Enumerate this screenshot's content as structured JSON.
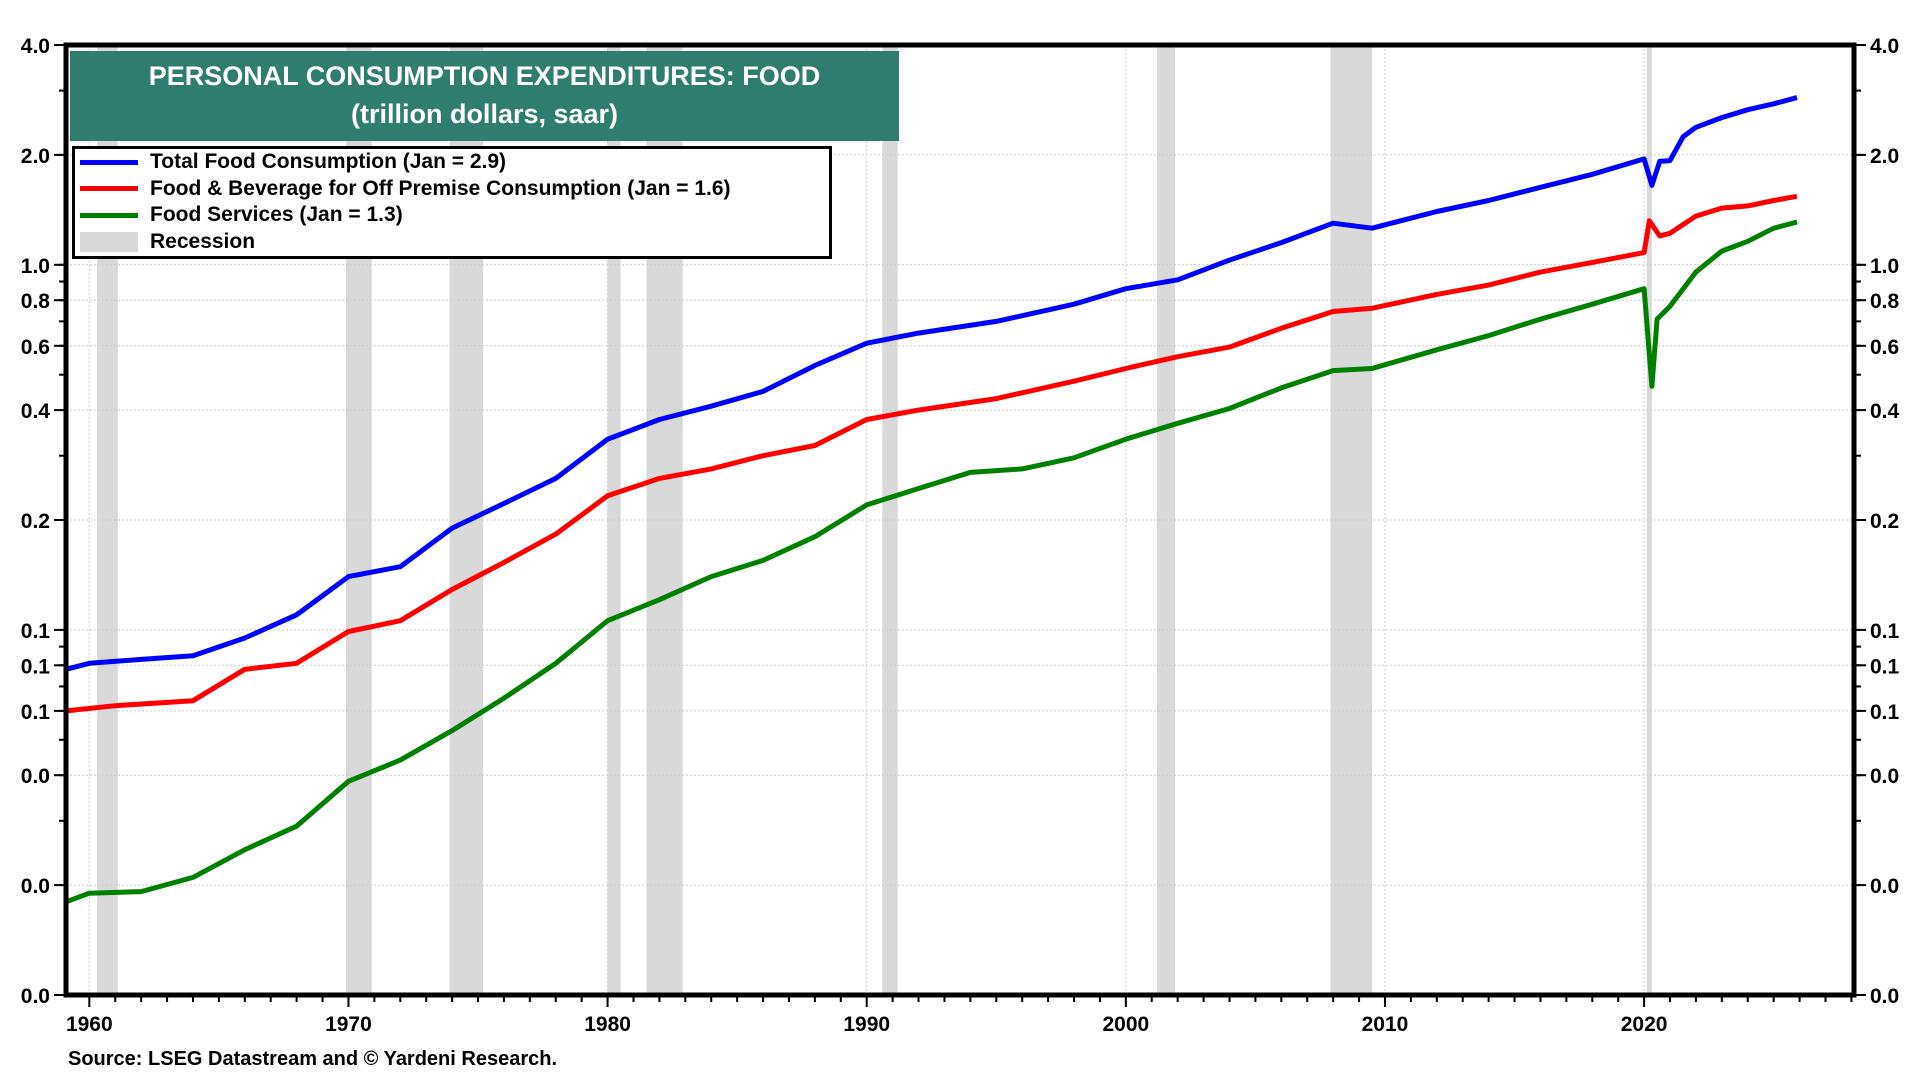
{
  "chart_data": {
    "type": "line",
    "title": "PERSONAL CONSUMPTION EXPENDITURES: FOOD",
    "subtitle": "(trillion dollars, saar)",
    "xlabel": "",
    "ylabel": "",
    "y_scale": "log",
    "ylim": [
      0.01,
      4.0
    ],
    "xlim": [
      1959.1,
      2028.1
    ],
    "grid": true,
    "legend_position": "top-left",
    "x_ticks": [
      1960,
      1970,
      1980,
      1990,
      2000,
      2010,
      2020
    ],
    "x_tick_labels": [
      "1960",
      "1970",
      "1980",
      "1990",
      "2000",
      "2010",
      "2020"
    ],
    "y_ticks": [
      {
        "value": 4.0,
        "label": "4.0"
      },
      {
        "value": 2.0,
        "label": "2.0"
      },
      {
        "value": 1.0,
        "label": "1.0"
      },
      {
        "value": 0.8,
        "label": "0.8"
      },
      {
        "value": 0.6,
        "label": "0.6"
      },
      {
        "value": 0.4,
        "label": "0.4"
      },
      {
        "value": 0.2,
        "label": "0.2"
      },
      {
        "value": 0.1,
        "label": "0.1"
      },
      {
        "value": 0.08,
        "label": "0.1"
      },
      {
        "value": 0.06,
        "label": "0.1"
      },
      {
        "value": 0.04,
        "label": "0.0"
      },
      {
        "value": 0.02,
        "label": "0.0"
      },
      {
        "value": 0.01,
        "label": "0.0"
      }
    ],
    "series": [
      {
        "name": "Total Food Consumption  (Jan = 2.9)",
        "color": "#0000ff",
        "x": [
          1959.1,
          1960,
          1962,
          1964,
          1966,
          1968,
          1970,
          1972,
          1974,
          1976,
          1978,
          1980,
          1982,
          1984,
          1986,
          1988,
          1990,
          1992,
          1995,
          1998,
          2000,
          2002,
          2004,
          2006,
          2008,
          2009.5,
          2012,
          2014,
          2016,
          2018,
          2020.0,
          2020.3,
          2020.6,
          2021,
          2021.5,
          2022,
          2023,
          2024,
          2025,
          2025.9
        ],
        "values": [
          0.078,
          0.081,
          0.083,
          0.085,
          0.095,
          0.11,
          0.14,
          0.149,
          0.19,
          0.222,
          0.26,
          0.333,
          0.377,
          0.41,
          0.45,
          0.53,
          0.61,
          0.65,
          0.7,
          0.78,
          0.86,
          0.91,
          1.03,
          1.15,
          1.3,
          1.26,
          1.4,
          1.5,
          1.63,
          1.77,
          1.95,
          1.65,
          1.92,
          1.93,
          2.24,
          2.38,
          2.53,
          2.66,
          2.76,
          2.87
        ]
      },
      {
        "name": "Food & Beverage for Off Premise Consumption  (Jan = 1.6)",
        "color": "#ff0000",
        "x": [
          1959.1,
          1961,
          1964,
          1966,
          1968,
          1970,
          1972,
          1974,
          1976,
          1978,
          1980,
          1982,
          1984,
          1986,
          1988,
          1990,
          1992,
          1995,
          1998,
          2000,
          2002,
          2004,
          2006,
          2008,
          2009.5,
          2012,
          2014,
          2016,
          2018,
          2020.0,
          2020.2,
          2020.6,
          2021,
          2022,
          2023,
          2024,
          2025,
          2025.9
        ],
        "values": [
          0.06,
          0.062,
          0.064,
          0.078,
          0.081,
          0.099,
          0.106,
          0.129,
          0.153,
          0.183,
          0.233,
          0.26,
          0.276,
          0.3,
          0.32,
          0.377,
          0.4,
          0.43,
          0.48,
          0.52,
          0.56,
          0.595,
          0.67,
          0.745,
          0.76,
          0.83,
          0.88,
          0.955,
          1.015,
          1.08,
          1.32,
          1.2,
          1.22,
          1.36,
          1.43,
          1.45,
          1.5,
          1.54
        ]
      },
      {
        "name": "Food Services  (Jan = 1.3)",
        "color": "#008000",
        "x": [
          1959.1,
          1960,
          1962,
          1964,
          1966,
          1968,
          1970,
          1972,
          1974,
          1976,
          1978,
          1980,
          1982,
          1984,
          1986,
          1988,
          1990,
          1992,
          1994,
          1996,
          1998,
          2000,
          2002,
          2004,
          2006,
          2008,
          2009.5,
          2012,
          2014,
          2016,
          2018,
          2020.0,
          2020.3,
          2020.5,
          2021,
          2022,
          2023,
          2024,
          2025,
          2025.9
        ],
        "values": [
          0.018,
          0.019,
          0.0192,
          0.021,
          0.025,
          0.029,
          0.0385,
          0.044,
          0.053,
          0.065,
          0.081,
          0.106,
          0.121,
          0.14,
          0.155,
          0.18,
          0.22,
          0.244,
          0.27,
          0.276,
          0.296,
          0.333,
          0.368,
          0.404,
          0.46,
          0.513,
          0.52,
          0.585,
          0.64,
          0.71,
          0.78,
          0.86,
          0.465,
          0.71,
          0.77,
          0.955,
          1.09,
          1.16,
          1.26,
          1.31
        ]
      }
    ],
    "recessions": [
      [
        1960.3,
        1961.1
      ],
      [
        1969.9,
        1970.9
      ],
      [
        1973.9,
        1975.2
      ],
      [
        1980.0,
        1980.5
      ],
      [
        1981.5,
        1982.9
      ],
      [
        1990.6,
        1991.2
      ],
      [
        2001.2,
        2001.9
      ],
      [
        2007.9,
        2009.5
      ],
      [
        2020.1,
        2020.3
      ]
    ],
    "recession_color": "#d9d9d9",
    "legend": [
      {
        "label": "Total Food Consumption  (Jan = 2.9)",
        "color": "#0000ff",
        "kind": "line"
      },
      {
        "label": "Food & Beverage for Off Premise Consumption  (Jan = 1.6)",
        "color": "#ff0000",
        "kind": "line"
      },
      {
        "label": "Food Services  (Jan = 1.3)",
        "color": "#008000",
        "kind": "line"
      },
      {
        "label": "Recession",
        "color": "#d9d9d9",
        "kind": "box"
      }
    ],
    "source": "Source: LSEG Datastream and © Yardeni Research.",
    "title_bg_color": "#2e7d6f"
  }
}
